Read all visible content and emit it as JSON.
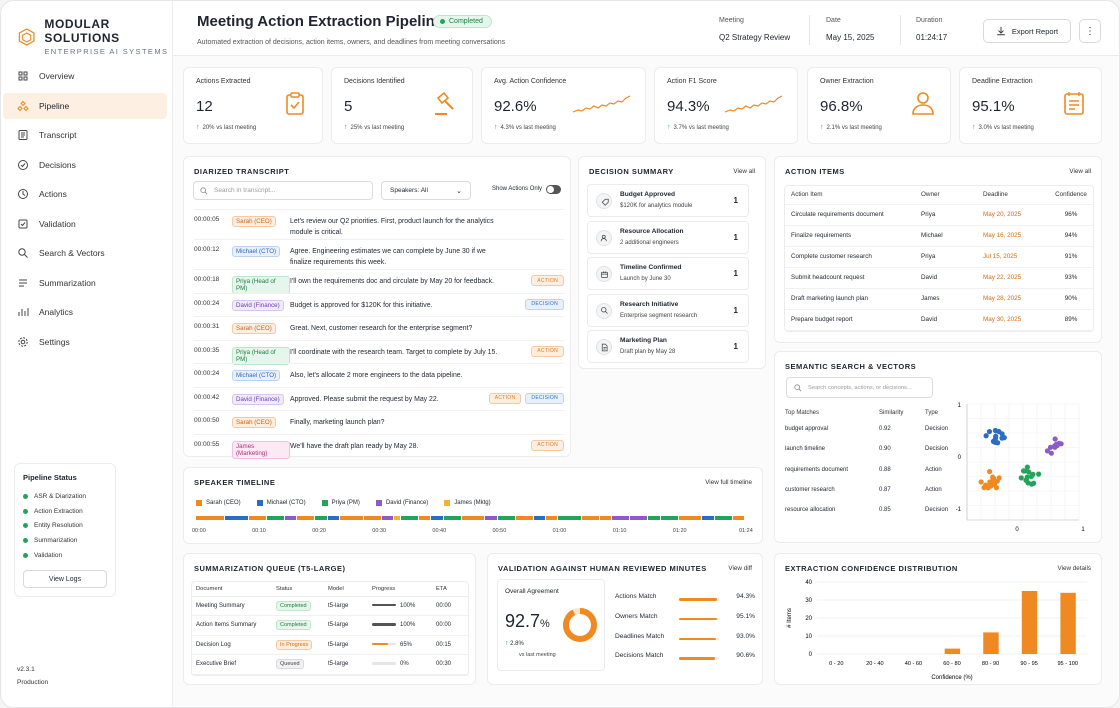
{
  "brand": {
    "name": "MODULAR SOLUTIONS",
    "tagline": "ENTERPRISE AI SYSTEMS"
  },
  "colors": {
    "accent": "#ef8a23",
    "success": "#22a559",
    "primary_blue": "#2b6cc4"
  },
  "nav": [
    {
      "label": "Overview",
      "icon": "overview-icon"
    },
    {
      "label": "Pipeline",
      "icon": "pipeline-icon",
      "active": true
    },
    {
      "label": "Transcript",
      "icon": "transcript-icon"
    },
    {
      "label": "Decisions",
      "icon": "decisions-icon"
    },
    {
      "label": "Actions",
      "icon": "actions-icon"
    },
    {
      "label": "Validation",
      "icon": "validation-icon"
    },
    {
      "label": "Search & Vectors",
      "icon": "search-vectors-icon"
    },
    {
      "label": "Summarization",
      "icon": "summarization-icon"
    },
    {
      "label": "Analytics",
      "icon": "analytics-icon"
    },
    {
      "label": "Settings",
      "icon": "settings-icon"
    }
  ],
  "pipeline_status": {
    "title": "Pipeline Status",
    "steps": [
      "ASR & Diarization",
      "Action Extraction",
      "Entity Resolution",
      "Summarization",
      "Validation"
    ],
    "button": "View Logs"
  },
  "version": {
    "number": "v2.3.1",
    "env": "Production"
  },
  "header": {
    "title": "Meeting Action Extraction Pipeline",
    "status": "Completed",
    "subtitle": "Automated extraction of decisions, action items, owners, and deadlines from meeting conversations",
    "meeting_label": "Meeting",
    "meeting": "Q2 Strategy Review",
    "date_label": "Date",
    "date": "May 15, 2025",
    "duration_label": "Duration",
    "duration": "01:24:17",
    "export": "Export Report"
  },
  "kpis": [
    {
      "label": "Actions Extracted",
      "value": "12",
      "delta": "20%",
      "delta_text": "vs last meeting",
      "icon": "clipboard-check-icon"
    },
    {
      "label": "Decisions Identified",
      "value": "5",
      "delta": "25%",
      "delta_text": "vs last meeting",
      "icon": "gavel-icon"
    },
    {
      "label": "Avg. Action Confidence",
      "value": "92.6%",
      "delta": "4.3%",
      "delta_text": "vs last meeting",
      "icon": "sparkline"
    },
    {
      "label": "Action F1 Score",
      "value": "94.3%",
      "delta": "3.7%",
      "delta_text": "vs last meeting",
      "icon": "sparkline"
    },
    {
      "label": "Owner Extraction",
      "value": "96.8%",
      "delta": "2.1%",
      "delta_text": "vs last meeting",
      "icon": "user-icon"
    },
    {
      "label": "Deadline Extraction",
      "value": "95.1%",
      "delta": "3.0%",
      "delta_text": "vs last meeting",
      "icon": "calendar-list-icon"
    }
  ],
  "transcript": {
    "title": "DIARIZED TRANSCRIPT",
    "search_placeholder": "Search in transcript...",
    "speakers_label": "Speakers: All",
    "toggle_label": "Show Actions Only",
    "rows": [
      {
        "time": "00:00:05",
        "speaker": "Sarah (CEO)",
        "color": "orange",
        "line1": "Let's review our Q2 priorities. First, product launch for the analytics",
        "line2": "module is critical.",
        "tags": []
      },
      {
        "time": "00:00:12",
        "speaker": "Michael (CTO)",
        "color": "blue",
        "line1": "Agree. Engineering estimates we can complete by June 30 if we",
        "line2": "finalize requirements this week.",
        "tags": []
      },
      {
        "time": "00:00:18",
        "speaker": "Priya (Head of PM)",
        "color": "green",
        "line1": "I'll own the requirements doc and circulate by May 20 for feedback.",
        "line2": "",
        "tags": [
          "ACTION"
        ]
      },
      {
        "time": "00:00:24",
        "speaker": "David (Finance)",
        "color": "purple",
        "line1": "Budget is approved for $120K for this initiative.",
        "line2": "",
        "tags": [
          "DECISION"
        ]
      },
      {
        "time": "00:00:31",
        "speaker": "Sarah (CEO)",
        "color": "orange",
        "line1": "Great. Next, customer research for the enterprise segment?",
        "line2": "",
        "tags": []
      },
      {
        "time": "00:00:35",
        "speaker": "Priya (Head of PM)",
        "color": "green",
        "line1": "I'll coordinate with the research team. Target to complete by July 15.",
        "line2": "",
        "tags": [
          "ACTION"
        ]
      },
      {
        "time": "00:00:24",
        "speaker": "Michael (CTO)",
        "color": "blue",
        "line1": "Also, let's allocate 2 more engineers to the data pipeline.",
        "line2": "",
        "tags": []
      },
      {
        "time": "00:00:42",
        "speaker": "David (Finance)",
        "color": "purple",
        "line1": "Approved. Please submit the request by May 22.",
        "line2": "",
        "tags": [
          "ACTION",
          "DECISION"
        ]
      },
      {
        "time": "00:00:50",
        "speaker": "Sarah (CEO)",
        "color": "orange",
        "line1": "Finally, marketing launch plan?",
        "line2": "",
        "tags": []
      },
      {
        "time": "00:00:55",
        "speaker": "James (Marketing)",
        "color": "pink",
        "line1": "We'll have the draft plan ready by May 28.",
        "line2": "",
        "tags": [
          "ACTION"
        ]
      }
    ]
  },
  "decision_summary": {
    "title": "DECISION SUMMARY",
    "view": "View all",
    "items": [
      {
        "title": "Budget Approved",
        "sub": "$120K for analytics module",
        "count": "1",
        "icon": "tag-icon"
      },
      {
        "title": "Resource Allocation",
        "sub": "2 additional engineers",
        "count": "1",
        "icon": "people-icon"
      },
      {
        "title": "Timeline Confirmed",
        "sub": "Launch by June 30",
        "count": "1",
        "icon": "calendar-icon"
      },
      {
        "title": "Research Initiative",
        "sub": "Enterprise segment research",
        "count": "1",
        "icon": "search-cog-icon"
      },
      {
        "title": "Marketing Plan",
        "sub": "Draft plan by May 28",
        "count": "1",
        "icon": "document-icon"
      }
    ]
  },
  "action_items": {
    "title": "ACTION ITEMS",
    "view": "View all",
    "headers": [
      "Action Item",
      "Owner",
      "Deadline",
      "Confidence"
    ],
    "rows": [
      [
        "Circulate requirements document",
        "Priya",
        "May 20, 2025",
        "96%"
      ],
      [
        "Finalize requirements",
        "Michael",
        "May 16, 2025",
        "94%"
      ],
      [
        "Complete customer research",
        "Priya",
        "Jul 15, 2025",
        "91%"
      ],
      [
        "Submit headcount request",
        "David",
        "May 22, 2025",
        "93%"
      ],
      [
        "Draft marketing launch plan",
        "James",
        "May 28, 2025",
        "90%"
      ],
      [
        "Prepare budget report",
        "David",
        "May 30, 2025",
        "89%"
      ]
    ]
  },
  "semantic_search": {
    "title": "SEMANTIC SEARCH & VECTORS",
    "placeholder": "Search concepts, actions, or decisions...",
    "headers": [
      "Top Matches",
      "Similarity",
      "Type"
    ],
    "rows": [
      [
        "budget approval",
        "0.92",
        "Decision"
      ],
      [
        "launch timeline",
        "0.90",
        "Decision"
      ],
      [
        "requirements document",
        "0.88",
        "Action"
      ],
      [
        "customer research",
        "0.87",
        "Action"
      ],
      [
        "resource allocation",
        "0.85",
        "Decision"
      ]
    ],
    "axis_ticks_y": [
      "1",
      "0",
      "-1"
    ],
    "axis_ticks_x": [
      "-1",
      "0",
      "1"
    ]
  },
  "speaker_timeline": {
    "title": "SPEAKER TIMELINE",
    "view": "View full timeline",
    "legend": [
      {
        "name": "Sarah (CEO)",
        "color": "#ef8a23"
      },
      {
        "name": "Michael (CTO)",
        "color": "#2b6cc4"
      },
      {
        "name": "Priya (PM)",
        "color": "#22a559"
      },
      {
        "name": "David (Finance)",
        "color": "#8b5cc7"
      },
      {
        "name": "James (Mktg)",
        "color": "#f2b233"
      }
    ],
    "ticks": [
      "00:00",
      "00:10",
      "00:20",
      "00:30",
      "00:40",
      "00:50",
      "01:00",
      "01:10",
      "01:20",
      "01:24"
    ],
    "segments": [
      "#ef8a23",
      "#2b6cc4",
      "#ef8a23",
      "#22a559",
      "#8b5cc7",
      "#ef8a23",
      "#22a559",
      "#2b6cc4",
      "#ef8a23",
      "#ef8a23",
      "#8b5cc7",
      "#f2b233",
      "#22a559",
      "#ef8a23",
      "#2b6cc4",
      "#22a559",
      "#ef8a23",
      "#8b5cc7",
      "#22a559",
      "#ef8a23",
      "#2b6cc4",
      "#ef8a23",
      "#22a559",
      "#ef8a23",
      "#ef8a23",
      "#8b5cc7",
      "#8b5cc7",
      "#22a559",
      "#22a559",
      "#ef8a23",
      "#2b6cc4",
      "#22a559",
      "#ef8a23"
    ]
  },
  "summarization": {
    "title": "SUMMARIZATION QUEUE (T5-LARGE)",
    "headers": [
      "Document",
      "Status",
      "Model",
      "Progress",
      "ETA"
    ],
    "rows": [
      {
        "doc": "Meeting Summary",
        "status": "Completed",
        "model": "t5-large",
        "progress": 100,
        "progress_text": "100%",
        "eta": "00:00"
      },
      {
        "doc": "Action Items Summary",
        "status": "Completed",
        "model": "t5-large",
        "progress": 100,
        "progress_text": "100%",
        "eta": "00:00"
      },
      {
        "doc": "Decision Log",
        "status": "In Progress",
        "model": "t5-large",
        "progress": 65,
        "progress_text": "65%",
        "eta": "00:15"
      },
      {
        "doc": "Executive Brief",
        "status": "Queued",
        "model": "t5-large",
        "progress": 0,
        "progress_text": "0%",
        "eta": "00:30"
      }
    ]
  },
  "validation": {
    "title": "VALIDATION AGAINST HUMAN REVIEWED MINUTES",
    "view": "View diff",
    "overall_label": "Overall Agreement",
    "overall": "92.7",
    "overall_unit": "%",
    "overall_fraction": 0.927,
    "delta": "2.8%",
    "delta_text": "vs last meeting",
    "rows": [
      {
        "label": "Actions Match",
        "value": "94.3%",
        "fraction": 0.943
      },
      {
        "label": "Owners Match",
        "value": "95.1%",
        "fraction": 0.951
      },
      {
        "label": "Deadlines Match",
        "value": "93.0%",
        "fraction": 0.93
      },
      {
        "label": "Decisions Match",
        "value": "90.6%",
        "fraction": 0.906
      }
    ]
  },
  "chart_data": {
    "type": "bar",
    "title": "EXTRACTION CONFIDENCE DISTRIBUTION",
    "view": "View details",
    "xlabel": "Confidence (%)",
    "ylabel": "# Items",
    "categories": [
      "0 - 20",
      "20 - 40",
      "40 - 60",
      "60 - 80",
      "80 - 90",
      "90 - 95",
      "95 - 100"
    ],
    "values": [
      0,
      0,
      0,
      3,
      12,
      35,
      34
    ],
    "ylim": [
      0,
      40
    ],
    "yticks": [
      "0",
      "10",
      "20",
      "30",
      "40"
    ],
    "color": "#ef8a23"
  }
}
